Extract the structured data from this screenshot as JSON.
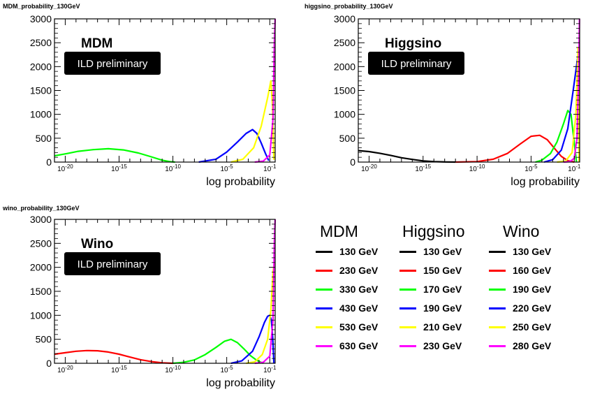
{
  "chart_data": [
    {
      "type": "line",
      "title": "MDM_probability_130GeV",
      "label": "MDM",
      "badge": "ILD preliminary",
      "xlabel": "log probability",
      "ylabel": "",
      "xscale": "log10",
      "xlim": [
        -21,
        -0.5
      ],
      "ylim": [
        0,
        3000
      ],
      "yticks": [
        0,
        500,
        1000,
        1500,
        2000,
        2500,
        3000
      ],
      "yticklabels": [
        "0",
        "500",
        "1000",
        "1500",
        "2000",
        "2500",
        "3000"
      ],
      "xticklabels": [
        "10-20",
        "10-15",
        "10-10",
        "10-5",
        "10-1"
      ],
      "series": [
        {
          "name": "130 GeV",
          "color": "#000000",
          "x": [],
          "y": []
        },
        {
          "name": "230 GeV",
          "color": "#ff0000",
          "x": [],
          "y": []
        },
        {
          "name": "330 GeV",
          "color": "#00ff00",
          "x": [
            -21,
            -19.8,
            -18.8,
            -17.4,
            -16,
            -14.6,
            -13.2,
            -12,
            -11,
            -10.3,
            -9.8
          ],
          "y": [
            130,
            180,
            225,
            260,
            280,
            255,
            190,
            110,
            40,
            10,
            0
          ]
        },
        {
          "name": "430 GeV",
          "color": "#0000ff",
          "x": [
            -7.6,
            -6,
            -5,
            -4,
            -3.2,
            -2.6,
            -2.2,
            -1.8,
            -1.4,
            -1.1
          ],
          "y": [
            0,
            60,
            210,
            420,
            600,
            680,
            600,
            400,
            180,
            30
          ]
        },
        {
          "name": "530 GeV",
          "color": "#ffff00",
          "x": [
            -4.6,
            -3.5,
            -2.5,
            -1.8,
            -1.2,
            -0.9,
            -0.75,
            -0.62
          ],
          "y": [
            0,
            60,
            300,
            750,
            1350,
            1700,
            1200,
            50
          ]
        },
        {
          "name": "630 GeV",
          "color": "#ff00ff",
          "x": [
            -2.4,
            -1.6,
            -1.0,
            -0.7,
            -0.58,
            -0.5
          ],
          "y": [
            0,
            20,
            150,
            900,
            2500,
            3000
          ]
        }
      ]
    },
    {
      "type": "line",
      "title": "higgsino_probability_130GeV",
      "label": "Higgsino",
      "badge": "ILD preliminary",
      "xlabel": "log probability",
      "ylabel": "",
      "xscale": "log10",
      "xlim": [
        -21,
        -0.5
      ],
      "ylim": [
        0,
        3000
      ],
      "yticks": [
        0,
        500,
        1000,
        1500,
        2000,
        2500,
        3000
      ],
      "yticklabels": [
        "0",
        "500",
        "1000",
        "1500",
        "2000",
        "2500",
        "3000"
      ],
      "xticklabels": [
        "10-20",
        "10-15",
        "10-10",
        "10-5",
        "10-1"
      ],
      "series": [
        {
          "name": "130 GeV",
          "color": "#000000",
          "x": [
            -21,
            -20,
            -19,
            -18,
            -17,
            -16,
            -15,
            -14,
            -13,
            -12
          ],
          "y": [
            240,
            220,
            185,
            140,
            90,
            55,
            25,
            10,
            3,
            0
          ]
        },
        {
          "name": "150 GeV",
          "color": "#ff0000",
          "x": [
            -12,
            -10,
            -8.5,
            -7.2,
            -6,
            -5,
            -4.2,
            -3.5,
            -2.8,
            -2.2,
            -1.6,
            -1.0
          ],
          "y": [
            0,
            10,
            60,
            180,
            380,
            540,
            560,
            470,
            280,
            120,
            30,
            0
          ]
        },
        {
          "name": "170 GeV",
          "color": "#00ff00",
          "x": [
            -4.6,
            -4.0,
            -3.2,
            -2.6,
            -2.0,
            -1.6,
            -1.3,
            -1.0,
            -0.8
          ],
          "y": [
            0,
            40,
            180,
            420,
            800,
            1080,
            1000,
            400,
            0
          ]
        },
        {
          "name": "190 GeV",
          "color": "#0000ff",
          "x": [
            -3.8,
            -3.0,
            -2.2,
            -1.6,
            -1.1,
            -0.8,
            -0.65,
            -0.55
          ],
          "y": [
            0,
            50,
            250,
            700,
            1500,
            2000,
            2250,
            0
          ]
        },
        {
          "name": "210 GeV",
          "color": "#ffff00",
          "x": [
            -2.6,
            -1.8,
            -1.2,
            -0.85,
            -0.65,
            -0.55
          ],
          "y": [
            0,
            20,
            200,
            1000,
            2400,
            0
          ]
        },
        {
          "name": "230 GeV",
          "color": "#ff00ff",
          "x": [
            -2.0,
            -1.4,
            -1.0,
            -0.75,
            -0.6,
            -0.52
          ],
          "y": [
            0,
            10,
            80,
            500,
            1800,
            3000
          ]
        }
      ]
    },
    {
      "type": "line",
      "title": "wino_probability_130GeV",
      "label": "Wino",
      "badge": "ILD preliminary",
      "xlabel": "log probability",
      "ylabel": "",
      "xscale": "log10",
      "xlim": [
        -21,
        -0.5
      ],
      "ylim": [
        0,
        3000
      ],
      "yticks": [
        0,
        500,
        1000,
        1500,
        2000,
        2500,
        3000
      ],
      "yticklabels": [
        "0",
        "500",
        "1000",
        "1500",
        "2000",
        "2500",
        "3000"
      ],
      "xticklabels": [
        "10-20",
        "10-15",
        "10-10",
        "10-5",
        "10-1"
      ],
      "series": [
        {
          "name": "130 GeV",
          "color": "#000000",
          "x": [],
          "y": []
        },
        {
          "name": "160 GeV",
          "color": "#ff0000",
          "x": [
            -21,
            -20,
            -19,
            -18,
            -17,
            -16,
            -15,
            -14,
            -13,
            -12,
            -11,
            -10
          ],
          "y": [
            190,
            220,
            250,
            265,
            260,
            235,
            190,
            130,
            75,
            35,
            10,
            0
          ]
        },
        {
          "name": "190 GeV",
          "color": "#00ff00",
          "x": [
            -10,
            -9,
            -8,
            -7,
            -6,
            -5.2,
            -4.6,
            -4.0,
            -3.4,
            -2.8,
            -2.2,
            -1.6
          ],
          "y": [
            0,
            20,
            70,
            180,
            330,
            460,
            500,
            430,
            300,
            160,
            60,
            0
          ]
        },
        {
          "name": "220 GeV",
          "color": "#0000ff",
          "x": [
            -4.6,
            -3.6,
            -2.6,
            -2.0,
            -1.5,
            -1.2,
            -1.0,
            -0.85,
            -0.72,
            -0.62
          ],
          "y": [
            0,
            50,
            250,
            550,
            850,
            980,
            1000,
            900,
            500,
            0
          ]
        },
        {
          "name": "250 GeV",
          "color": "#ffff00",
          "x": [
            -3.2,
            -2.4,
            -1.7,
            -1.2,
            -0.9,
            -0.7,
            -0.58
          ],
          "y": [
            0,
            30,
            180,
            500,
            1100,
            1900,
            2100
          ]
        },
        {
          "name": "280 GeV",
          "color": "#ff00ff",
          "x": [
            -2.4,
            -1.6,
            -1.0,
            -0.7,
            -0.57,
            -0.5
          ],
          "y": [
            0,
            20,
            150,
            900,
            2600,
            3000
          ]
        }
      ]
    }
  ],
  "legend": {
    "columns": [
      {
        "title": "MDM",
        "entries": [
          {
            "label": "130 GeV",
            "color": "#000000"
          },
          {
            "label": "230 GeV",
            "color": "#ff0000"
          },
          {
            "label": "330 GeV",
            "color": "#00ff00"
          },
          {
            "label": "430 GeV",
            "color": "#0000ff"
          },
          {
            "label": "530 GeV",
            "color": "#ffff00"
          },
          {
            "label": "630 GeV",
            "color": "#ff00ff"
          }
        ]
      },
      {
        "title": "Higgsino",
        "entries": [
          {
            "label": "130 GeV",
            "color": "#000000"
          },
          {
            "label": "150 GeV",
            "color": "#ff0000"
          },
          {
            "label": "170 GeV",
            "color": "#00ff00"
          },
          {
            "label": "190 GeV",
            "color": "#0000ff"
          },
          {
            "label": "210 GeV",
            "color": "#ffff00"
          },
          {
            "label": "230 GeV",
            "color": "#ff00ff"
          }
        ]
      },
      {
        "title": "Wino",
        "entries": [
          {
            "label": "130 GeV",
            "color": "#000000"
          },
          {
            "label": "160 GeV",
            "color": "#ff0000"
          },
          {
            "label": "190 GeV",
            "color": "#00ff00"
          },
          {
            "label": "220 GeV",
            "color": "#0000ff"
          },
          {
            "label": "250 GeV",
            "color": "#ffff00"
          },
          {
            "label": "280 GeV",
            "color": "#ff00ff"
          }
        ]
      }
    ]
  }
}
